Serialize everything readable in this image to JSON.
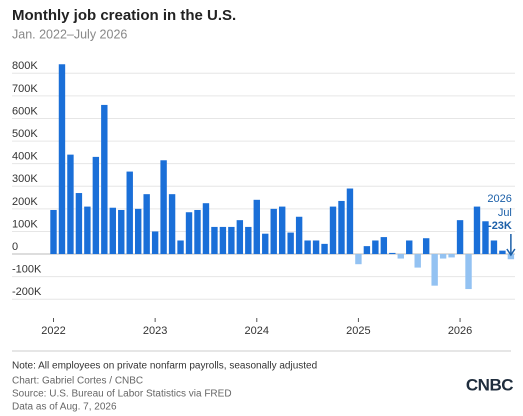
{
  "chart_data": {
    "type": "bar",
    "title": "Monthly job creation in the U.S.",
    "subtitle": "Jan. 2022–July 2026",
    "categories": [
      "2022",
      null,
      null,
      null,
      null,
      null,
      null,
      null,
      null,
      null,
      null,
      null,
      "2023",
      null,
      null,
      null,
      null,
      null,
      null,
      null,
      null,
      null,
      null,
      null,
      "2024",
      null,
      null,
      null,
      null,
      null,
      null,
      null,
      null,
      null,
      null,
      null,
      "2025",
      null,
      null,
      null,
      null,
      null,
      null,
      null,
      null,
      null,
      null,
      null,
      "2026",
      null,
      null,
      null,
      null,
      null,
      null
    ],
    "values": [
      195,
      840,
      440,
      270,
      210,
      430,
      660,
      205,
      195,
      365,
      200,
      265,
      100,
      415,
      265,
      60,
      185,
      195,
      225,
      120,
      120,
      120,
      150,
      120,
      240,
      90,
      200,
      210,
      95,
      165,
      60,
      60,
      45,
      210,
      235,
      290,
      -45,
      35,
      60,
      75,
      5,
      -20,
      60,
      -60,
      70,
      -140,
      -20,
      -15,
      150,
      -155,
      210,
      145,
      60,
      15,
      -23
    ],
    "value_labels": [
      null,
      null,
      null,
      null,
      null,
      null,
      null,
      null,
      null,
      null,
      null,
      null,
      null,
      null,
      null,
      null,
      null,
      null,
      null,
      null,
      null,
      null,
      null,
      null,
      null,
      null,
      null,
      null,
      null,
      null,
      null,
      null,
      null,
      null,
      null,
      null,
      null,
      null,
      null,
      null,
      null,
      null,
      null,
      null,
      null,
      null,
      null,
      null,
      null,
      null,
      null,
      null,
      null,
      null,
      "-23K"
    ],
    "annotation": {
      "year": "2026",
      "month": "Jul"
    },
    "color": "#1a6fd8",
    "negative_color": "#93c2f2",
    "ylim": [
      -230,
      850
    ],
    "yticks": [
      {
        "value": -200,
        "label": "-200K"
      },
      {
        "value": -100,
        "label": "-100K"
      },
      0,
      {
        "value": 100,
        "label": "100K"
      },
      {
        "value": 200,
        "label": "200K"
      },
      {
        "value": 300,
        "label": "300K"
      },
      {
        "value": 400,
        "label": "400K"
      },
      {
        "value": 500,
        "label": "500K"
      },
      {
        "value": 600,
        "label": "600K"
      },
      {
        "value": 700,
        "label": "700K"
      },
      {
        "value": 800,
        "label": "800K"
      }
    ],
    "grid": true,
    "notes": [
      "Note: All employees on private nonfarm payrolls, seasonally adjusted",
      "Chart: Gabriel Cortes / CNBC",
      "Source: U.S. Bureau of Labor Statistics via FRED",
      "Data as of Aug. 7, 2026"
    ],
    "logo": "CNBC"
  }
}
